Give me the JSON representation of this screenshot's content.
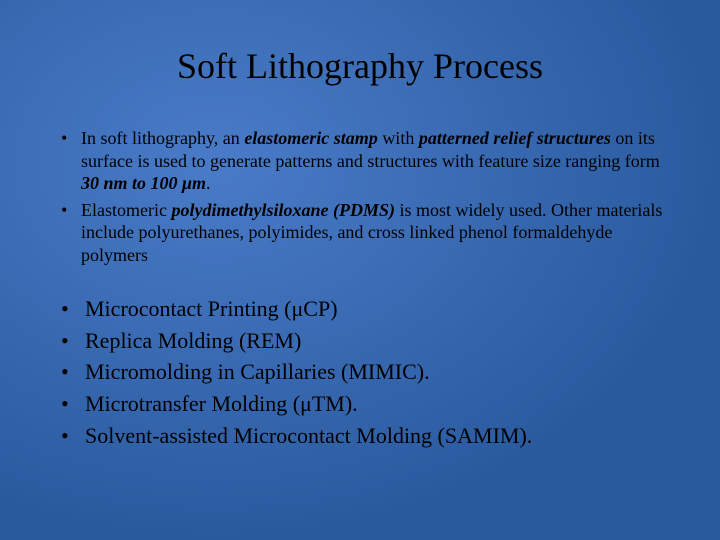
{
  "background": {
    "gradient_from": "#4a7bc8",
    "gradient_to": "#2a5a9e",
    "type": "radial"
  },
  "title": {
    "text": "Soft Lithography Process",
    "fontsize": 36,
    "color": "#000000",
    "align": "center",
    "font_family": "Times New Roman"
  },
  "group1": {
    "fontsize": 18,
    "color": "#000000",
    "items": [
      {
        "runs": [
          {
            "t": "In soft lithography, an "
          },
          {
            "t": "elastomeric stamp",
            "bi": true
          },
          {
            "t": " with "
          },
          {
            "t": "patterned relief structures",
            "bi": true
          },
          {
            "t": " on its surface is used to generate patterns and structures with feature size ranging form "
          },
          {
            "t": "30 nm to 100 μm",
            "bi": true
          },
          {
            "t": "."
          }
        ]
      },
      {
        "runs": [
          {
            "t": "Elastomeric "
          },
          {
            "t": "polydimethylsiloxane (PDMS)",
            "bi": true
          },
          {
            "t": " is most widely used. Other materials include polyurethanes, polyimides, and cross linked phenol formaldehyde polymers"
          }
        ]
      }
    ]
  },
  "group2": {
    "fontsize": 22,
    "color": "#000000",
    "items": [
      "Microcontact Printing (μCP)",
      "Replica Molding (REM)",
      "Micromolding in Capillaries (MIMIC).",
      "Microtransfer Molding (μTM).",
      "Solvent-assisted Microcontact Molding (SAMIM)."
    ]
  }
}
